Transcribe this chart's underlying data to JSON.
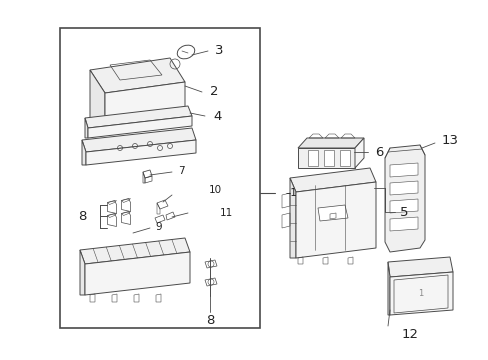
{
  "bg_color": "#ffffff",
  "line_color": "#4a4a4a",
  "lw": 0.7,
  "fig_width": 4.89,
  "fig_height": 3.6,
  "dpi": 100,
  "label_fs": 7.5,
  "label_fs_large": 9.5
}
